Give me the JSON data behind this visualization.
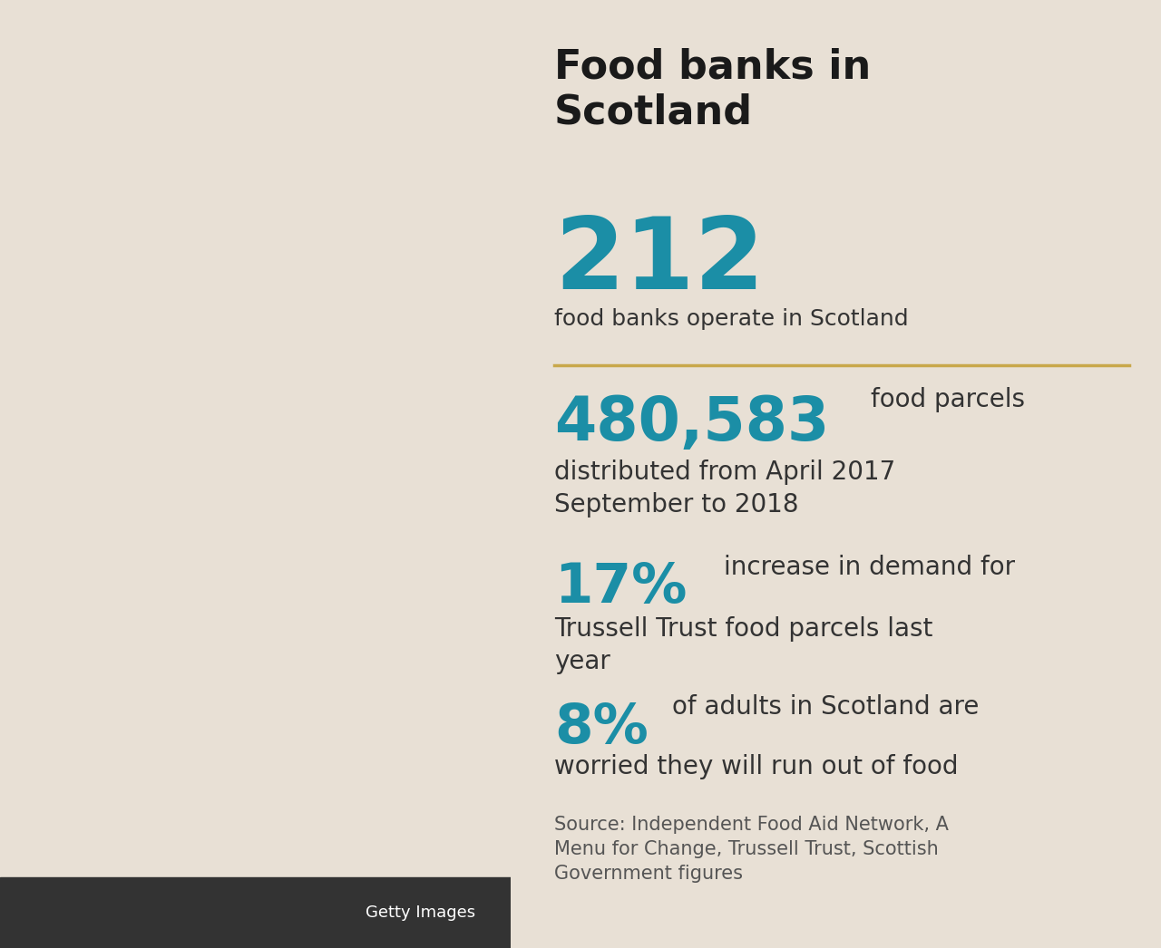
{
  "background_color": "#e8e0d5",
  "title": "Food banks in\nScotland",
  "title_fontsize": 32,
  "title_color": "#1a1a1a",
  "stat1_number": "212",
  "stat1_number_color": "#1b8ea6",
  "stat1_number_fontsize": 80,
  "stat1_desc": "food banks operate in Scotland",
  "stat1_desc_fontsize": 18,
  "stat1_desc_color": "#333333",
  "divider_color": "#c8a84b",
  "stat2_number": "480,583",
  "stat2_number_color": "#1b8ea6",
  "stat2_number_fontsize": 48,
  "stat2_inline": "food parcels",
  "stat2_desc": "distributed from April 2017\nSeptember to 2018",
  "stat2_desc_fontsize": 20,
  "stat2_desc_color": "#333333",
  "stat3_number": "17%",
  "stat3_number_color": "#1b8ea6",
  "stat3_number_fontsize": 44,
  "stat3_inline": "increase in demand for",
  "stat3_desc": "Trussell Trust food parcels last\nyear",
  "stat3_desc_fontsize": 20,
  "stat3_desc_color": "#333333",
  "stat4_number": "8%",
  "stat4_number_color": "#1b8ea6",
  "stat4_number_fontsize": 44,
  "stat4_inline": "of adults in Scotland are",
  "stat4_desc": "worried they will run out of food",
  "stat4_desc_fontsize": 20,
  "stat4_desc_color": "#333333",
  "source_text": "Source: Independent Food Aid Network, A\nMenu for Change, Trussell Trust, Scottish\nGovernment figures",
  "source_fontsize": 15,
  "source_color": "#555555",
  "getty_text": "Getty Images",
  "getty_fontsize": 13,
  "getty_bg": "#333333",
  "getty_color": "#ffffff",
  "image_placeholder_color": "#888888"
}
